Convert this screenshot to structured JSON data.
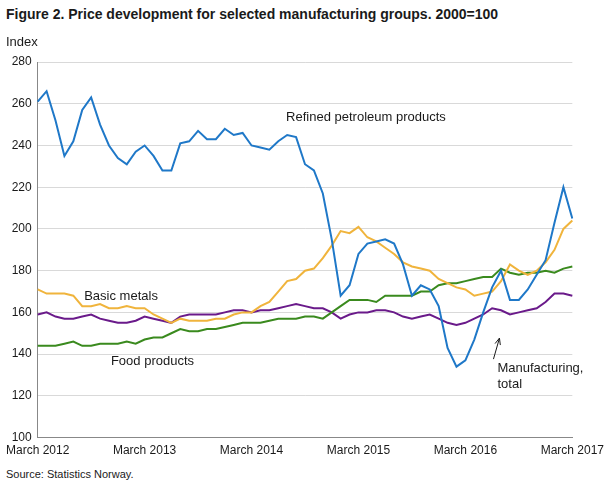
{
  "chart_data": {
    "type": "line",
    "title": "Figure 2. Price development for selected manufacturing groups. 2000=100",
    "ylabel": "Index",
    "source": "Source: Statistics Norway.",
    "categories": [
      "March 2012",
      null,
      null,
      null,
      null,
      null,
      null,
      null,
      null,
      null,
      null,
      null,
      "March 2013",
      null,
      null,
      null,
      null,
      null,
      null,
      null,
      null,
      null,
      null,
      null,
      "March 2014",
      null,
      null,
      null,
      null,
      null,
      null,
      null,
      null,
      null,
      null,
      null,
      "March 2015",
      null,
      null,
      null,
      null,
      null,
      null,
      null,
      null,
      null,
      null,
      null,
      "March 2016",
      null,
      null,
      null,
      null,
      null,
      null,
      null,
      null,
      null,
      null,
      null,
      "March 2017"
    ],
    "series": [
      {
        "name": "Refined petroleum products",
        "color": "#1f78c8",
        "values": [
          261,
          266,
          252,
          235,
          242,
          257,
          263,
          250,
          240,
          234,
          231,
          237,
          240,
          235,
          228,
          228,
          241,
          242,
          247,
          243,
          243,
          248,
          245,
          246,
          240,
          239,
          238,
          242,
          245,
          244,
          231,
          228,
          217,
          195,
          168,
          173,
          188,
          193,
          194,
          195,
          193,
          183,
          168,
          173,
          171,
          163,
          143,
          134,
          137,
          147,
          160,
          172,
          180,
          166,
          166,
          171,
          178,
          185,
          203,
          220,
          205
        ]
      },
      {
        "name": "Basic metals",
        "color": "#f0b43c",
        "values": [
          171,
          169,
          169,
          169,
          168,
          163,
          163,
          164,
          162,
          162,
          163,
          162,
          162,
          159,
          157,
          155,
          157,
          156,
          156,
          156,
          157,
          157,
          159,
          160,
          160,
          163,
          165,
          170,
          175,
          176,
          180,
          181,
          186,
          192,
          199,
          198,
          201,
          196,
          194,
          191,
          188,
          184,
          182,
          181,
          180,
          176,
          174,
          172,
          171,
          168,
          169,
          170,
          175,
          183,
          180,
          178,
          180,
          184,
          190,
          200,
          204
        ]
      },
      {
        "name": "Food products",
        "color": "#3a8a1e",
        "values": [
          144,
          144,
          144,
          145,
          146,
          144,
          144,
          145,
          145,
          145,
          146,
          145,
          147,
          148,
          148,
          150,
          152,
          151,
          151,
          152,
          152,
          153,
          154,
          155,
          155,
          155,
          156,
          157,
          157,
          157,
          158,
          158,
          157,
          160,
          163,
          166,
          166,
          166,
          165,
          168,
          168,
          168,
          168,
          170,
          170,
          173,
          174,
          174,
          175,
          176,
          177,
          177,
          181,
          179,
          178,
          179,
          179,
          180,
          179,
          181,
          182
        ]
      },
      {
        "name": "Manufacturing, total",
        "color": "#6a1a8a",
        "values": [
          159,
          160,
          158,
          157,
          157,
          158,
          159,
          157,
          156,
          155,
          155,
          156,
          158,
          157,
          156,
          155,
          158,
          159,
          159,
          159,
          159,
          160,
          161,
          161,
          160,
          161,
          161,
          162,
          163,
          164,
          163,
          162,
          162,
          160,
          157,
          159,
          160,
          160,
          161,
          161,
          160,
          158,
          157,
          158,
          159,
          157,
          155,
          154,
          155,
          157,
          159,
          162,
          161,
          159,
          160,
          161,
          162,
          165,
          169,
          169,
          168
        ]
      }
    ],
    "ylim": [
      100,
      280
    ],
    "yticks": [
      100,
      120,
      140,
      160,
      180,
      200,
      220,
      240,
      260,
      280
    ],
    "grid": true
  }
}
